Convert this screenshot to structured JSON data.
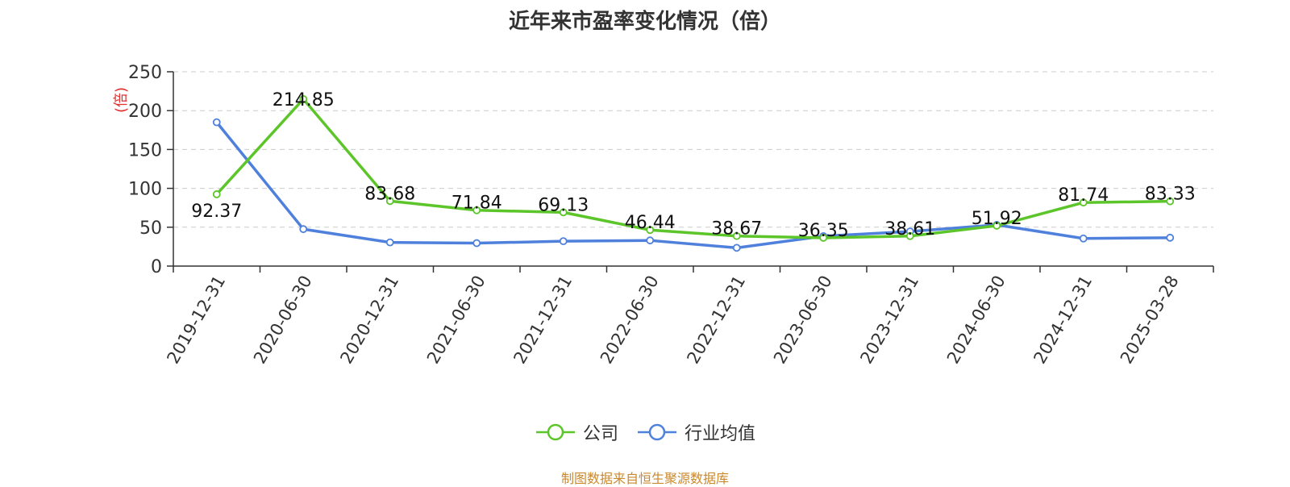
{
  "chart_data": {
    "type": "line",
    "title": "近年来市盈率变化情况（倍）",
    "ylabel": "(倍)",
    "xlabel": "",
    "ylim": [
      0,
      250
    ],
    "yticks": [
      0,
      50,
      100,
      150,
      200,
      250
    ],
    "grid": true,
    "legend_position": "bottom",
    "categories": [
      "2019-12-31",
      "2020-06-30",
      "2020-12-31",
      "2021-06-30",
      "2021-12-31",
      "2022-06-30",
      "2022-12-31",
      "2023-06-30",
      "2023-12-31",
      "2024-06-30",
      "2024-12-31",
      "2025-03-28"
    ],
    "series": [
      {
        "name": "公司",
        "color": "#5cc52a",
        "values": [
          92.37,
          214.85,
          83.68,
          71.84,
          69.13,
          46.44,
          38.67,
          36.35,
          38.61,
          51.92,
          81.74,
          83.33
        ],
        "labels": [
          "92.37",
          "214.85",
          "83.68",
          "71.84",
          "69.13",
          "46.44",
          "38.67",
          "36.35",
          "38.61",
          "51.92",
          "81.74",
          "83.33"
        ]
      },
      {
        "name": "行业均值",
        "color": "#4f81dc",
        "values": [
          185,
          47.5,
          30.5,
          29.5,
          32,
          33,
          23.5,
          38.5,
          44.5,
          53,
          35.5,
          36.5
        ]
      }
    ],
    "source": "制图数据来自恒生聚源数据库",
    "source_color": "#c9892e",
    "ylabel_color": "#e03030"
  }
}
